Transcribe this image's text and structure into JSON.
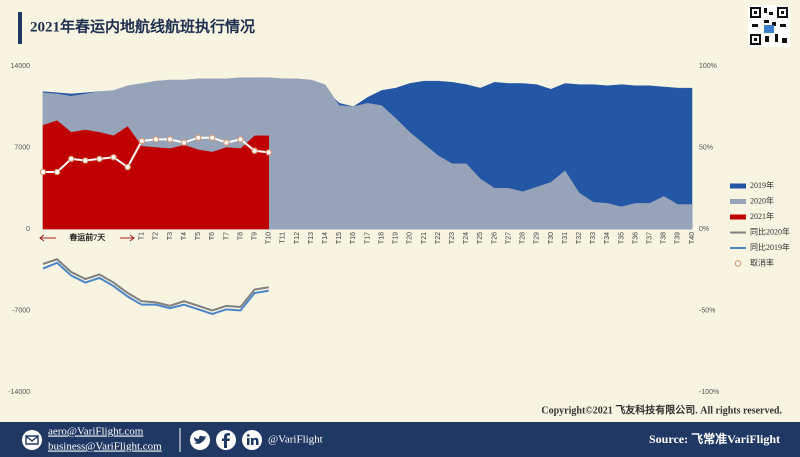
{
  "header": {
    "title": "2021年春运内地航线航班执行情况",
    "copyright": "Copyright©2021 飞友科技有限公司. All rights reserved."
  },
  "footer": {
    "emails": [
      "aero@VariFlight.com",
      "business@VariFlight.com"
    ],
    "handle": "@VariFlight",
    "source": "Source: 飞常准VariFlight"
  },
  "chart_data": {
    "type": "area",
    "annotation": "春运前7天",
    "categories": [
      null,
      null,
      null,
      null,
      null,
      null,
      null,
      "T1",
      "T2",
      "T3",
      "T4",
      "T5",
      "T6",
      "T7",
      "T8",
      "T9",
      "T10",
      "T11",
      "T12",
      "T13",
      "T14",
      "T15",
      "T16",
      "T17",
      "T18",
      "T19",
      "T20",
      "T21",
      "T22",
      "T23",
      "T24",
      "T25",
      "T26",
      "T27",
      "T28",
      "T29",
      "T30",
      "T31",
      "T32",
      "T33",
      "T34",
      "T35",
      "T36",
      "T37",
      "T38",
      "T39",
      "T40"
    ],
    "ylim": [
      -14000,
      14000
    ],
    "yticks": [
      -14000,
      -7000,
      0,
      7000,
      14000
    ],
    "y2lim": [
      -100,
      100
    ],
    "y2ticks": [
      {
        "value": -100,
        "label": "-100%"
      },
      {
        "value": -50,
        "label": "-50%"
      },
      {
        "value": 0,
        "label": "0%"
      },
      {
        "value": 50,
        "label": "50%"
      },
      {
        "value": 100,
        "label": "100%"
      }
    ],
    "series": [
      {
        "name": "2019年",
        "kind": "area",
        "color": "#2356a4",
        "values": [
          11800,
          11700,
          11600,
          11700,
          11800,
          11800,
          12100,
          12300,
          12400,
          12500,
          12500,
          12600,
          12600,
          12600,
          12700,
          12700,
          12700,
          12700,
          12700,
          12600,
          12000,
          10800,
          10500,
          11300,
          11900,
          12100,
          12500,
          12700,
          12700,
          12600,
          12400,
          12100,
          12600,
          12500,
          12500,
          12400,
          12000,
          12500,
          12400,
          12400,
          12300,
          12400,
          12300,
          12300,
          12200,
          12100,
          12100
        ]
      },
      {
        "name": "2020年",
        "kind": "area",
        "color": "#97a3b9",
        "values": [
          11700,
          11600,
          11400,
          11600,
          11800,
          11900,
          12300,
          12500,
          12700,
          12800,
          12800,
          12900,
          12900,
          12900,
          13000,
          13000,
          13000,
          12900,
          12900,
          12800,
          12400,
          10600,
          10500,
          10800,
          10600,
          9500,
          8300,
          7300,
          6300,
          5600,
          5600,
          4300,
          3500,
          3500,
          3200,
          3600,
          4000,
          5000,
          3100,
          2300,
          2200,
          1900,
          2200,
          2200,
          2800,
          2100,
          2100
        ]
      },
      {
        "name": "2021年",
        "kind": "area",
        "color": "#c00000",
        "values": [
          8900,
          9300,
          8300,
          8500,
          8300,
          8000,
          8800,
          7100,
          7000,
          6900,
          7200,
          6800,
          6600,
          7000,
          6900,
          8000,
          8000,
          null,
          null,
          null,
          null,
          null,
          null,
          null,
          null,
          null,
          null,
          null,
          null,
          null,
          null,
          null,
          null,
          null,
          null,
          null,
          null,
          null,
          null,
          null,
          null,
          null,
          null,
          null,
          null,
          null,
          null
        ]
      },
      {
        "name": "同比2020年",
        "kind": "line",
        "color": "#7f7f7f",
        "values": [
          -3000,
          -2600,
          -3700,
          -4300,
          -3900,
          -4600,
          -5500,
          -6200,
          -6300,
          -6600,
          -6200,
          -6600,
          -7000,
          -6600,
          -6700,
          -5200,
          -5000,
          null,
          null,
          null,
          null,
          null,
          null,
          null,
          null,
          null,
          null,
          null,
          null,
          null,
          null,
          null,
          null,
          null,
          null,
          null,
          null,
          null,
          null,
          null,
          null,
          null,
          null,
          null,
          null,
          null,
          null
        ]
      },
      {
        "name": "同比2019年",
        "kind": "line",
        "color": "#4a86c8",
        "values": [
          -3400,
          -2900,
          -4000,
          -4600,
          -4200,
          -4900,
          -5800,
          -6500,
          -6500,
          -6800,
          -6500,
          -6900,
          -7300,
          -6900,
          -7000,
          -5500,
          -5300,
          null,
          null,
          null,
          null,
          null,
          null,
          null,
          null,
          null,
          null,
          null,
          null,
          null,
          null,
          null,
          null,
          null,
          null,
          null,
          null,
          null,
          null,
          null,
          null,
          null,
          null,
          null,
          null,
          null,
          null
        ]
      },
      {
        "name": "取消率",
        "kind": "marker-line",
        "axis": "y2",
        "color": "#ffffff",
        "marker_color": "#d49a74",
        "values": [
          35,
          35,
          43,
          42,
          43,
          44,
          38,
          54,
          55,
          55,
          53,
          56,
          56,
          53,
          55,
          48,
          47,
          null,
          null,
          null,
          null,
          null,
          null,
          null,
          null,
          null,
          null,
          null,
          null,
          null,
          null,
          null,
          null,
          null,
          null,
          null,
          null,
          null,
          null,
          null,
          null,
          null,
          null,
          null,
          null,
          null,
          null
        ]
      }
    ]
  }
}
